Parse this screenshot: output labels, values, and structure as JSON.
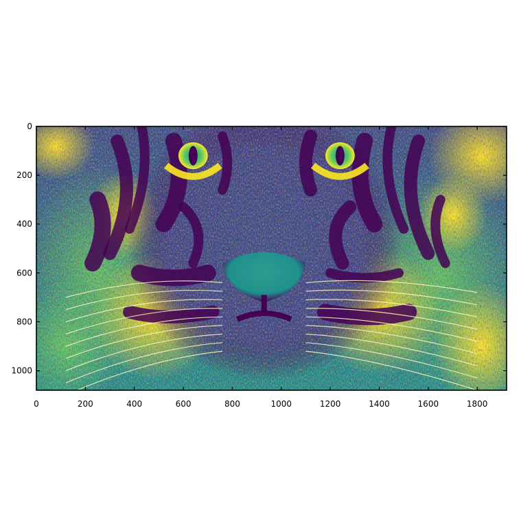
{
  "chart_data": {
    "type": "heatmap",
    "image_subject": "tiger-face",
    "colormap": "viridis",
    "colors": [
      "#440154",
      "#3b528b",
      "#21918c",
      "#5ec962",
      "#fde725"
    ],
    "title": "",
    "xlabel": "",
    "ylabel": "",
    "xlim": [
      0,
      1920
    ],
    "ylim": [
      1080,
      0
    ],
    "x_ticks": [
      0,
      200,
      400,
      600,
      800,
      1000,
      1200,
      1400,
      1600,
      1800
    ],
    "y_ticks": [
      0,
      200,
      400,
      600,
      800,
      1000
    ],
    "x_tick_labels": [
      "0",
      "200",
      "400",
      "600",
      "800",
      "1000",
      "1200",
      "1400",
      "1600",
      "1800"
    ],
    "y_tick_labels": [
      "0",
      "200",
      "400",
      "600",
      "800",
      "1000"
    ],
    "grid": false,
    "legend": "none"
  }
}
